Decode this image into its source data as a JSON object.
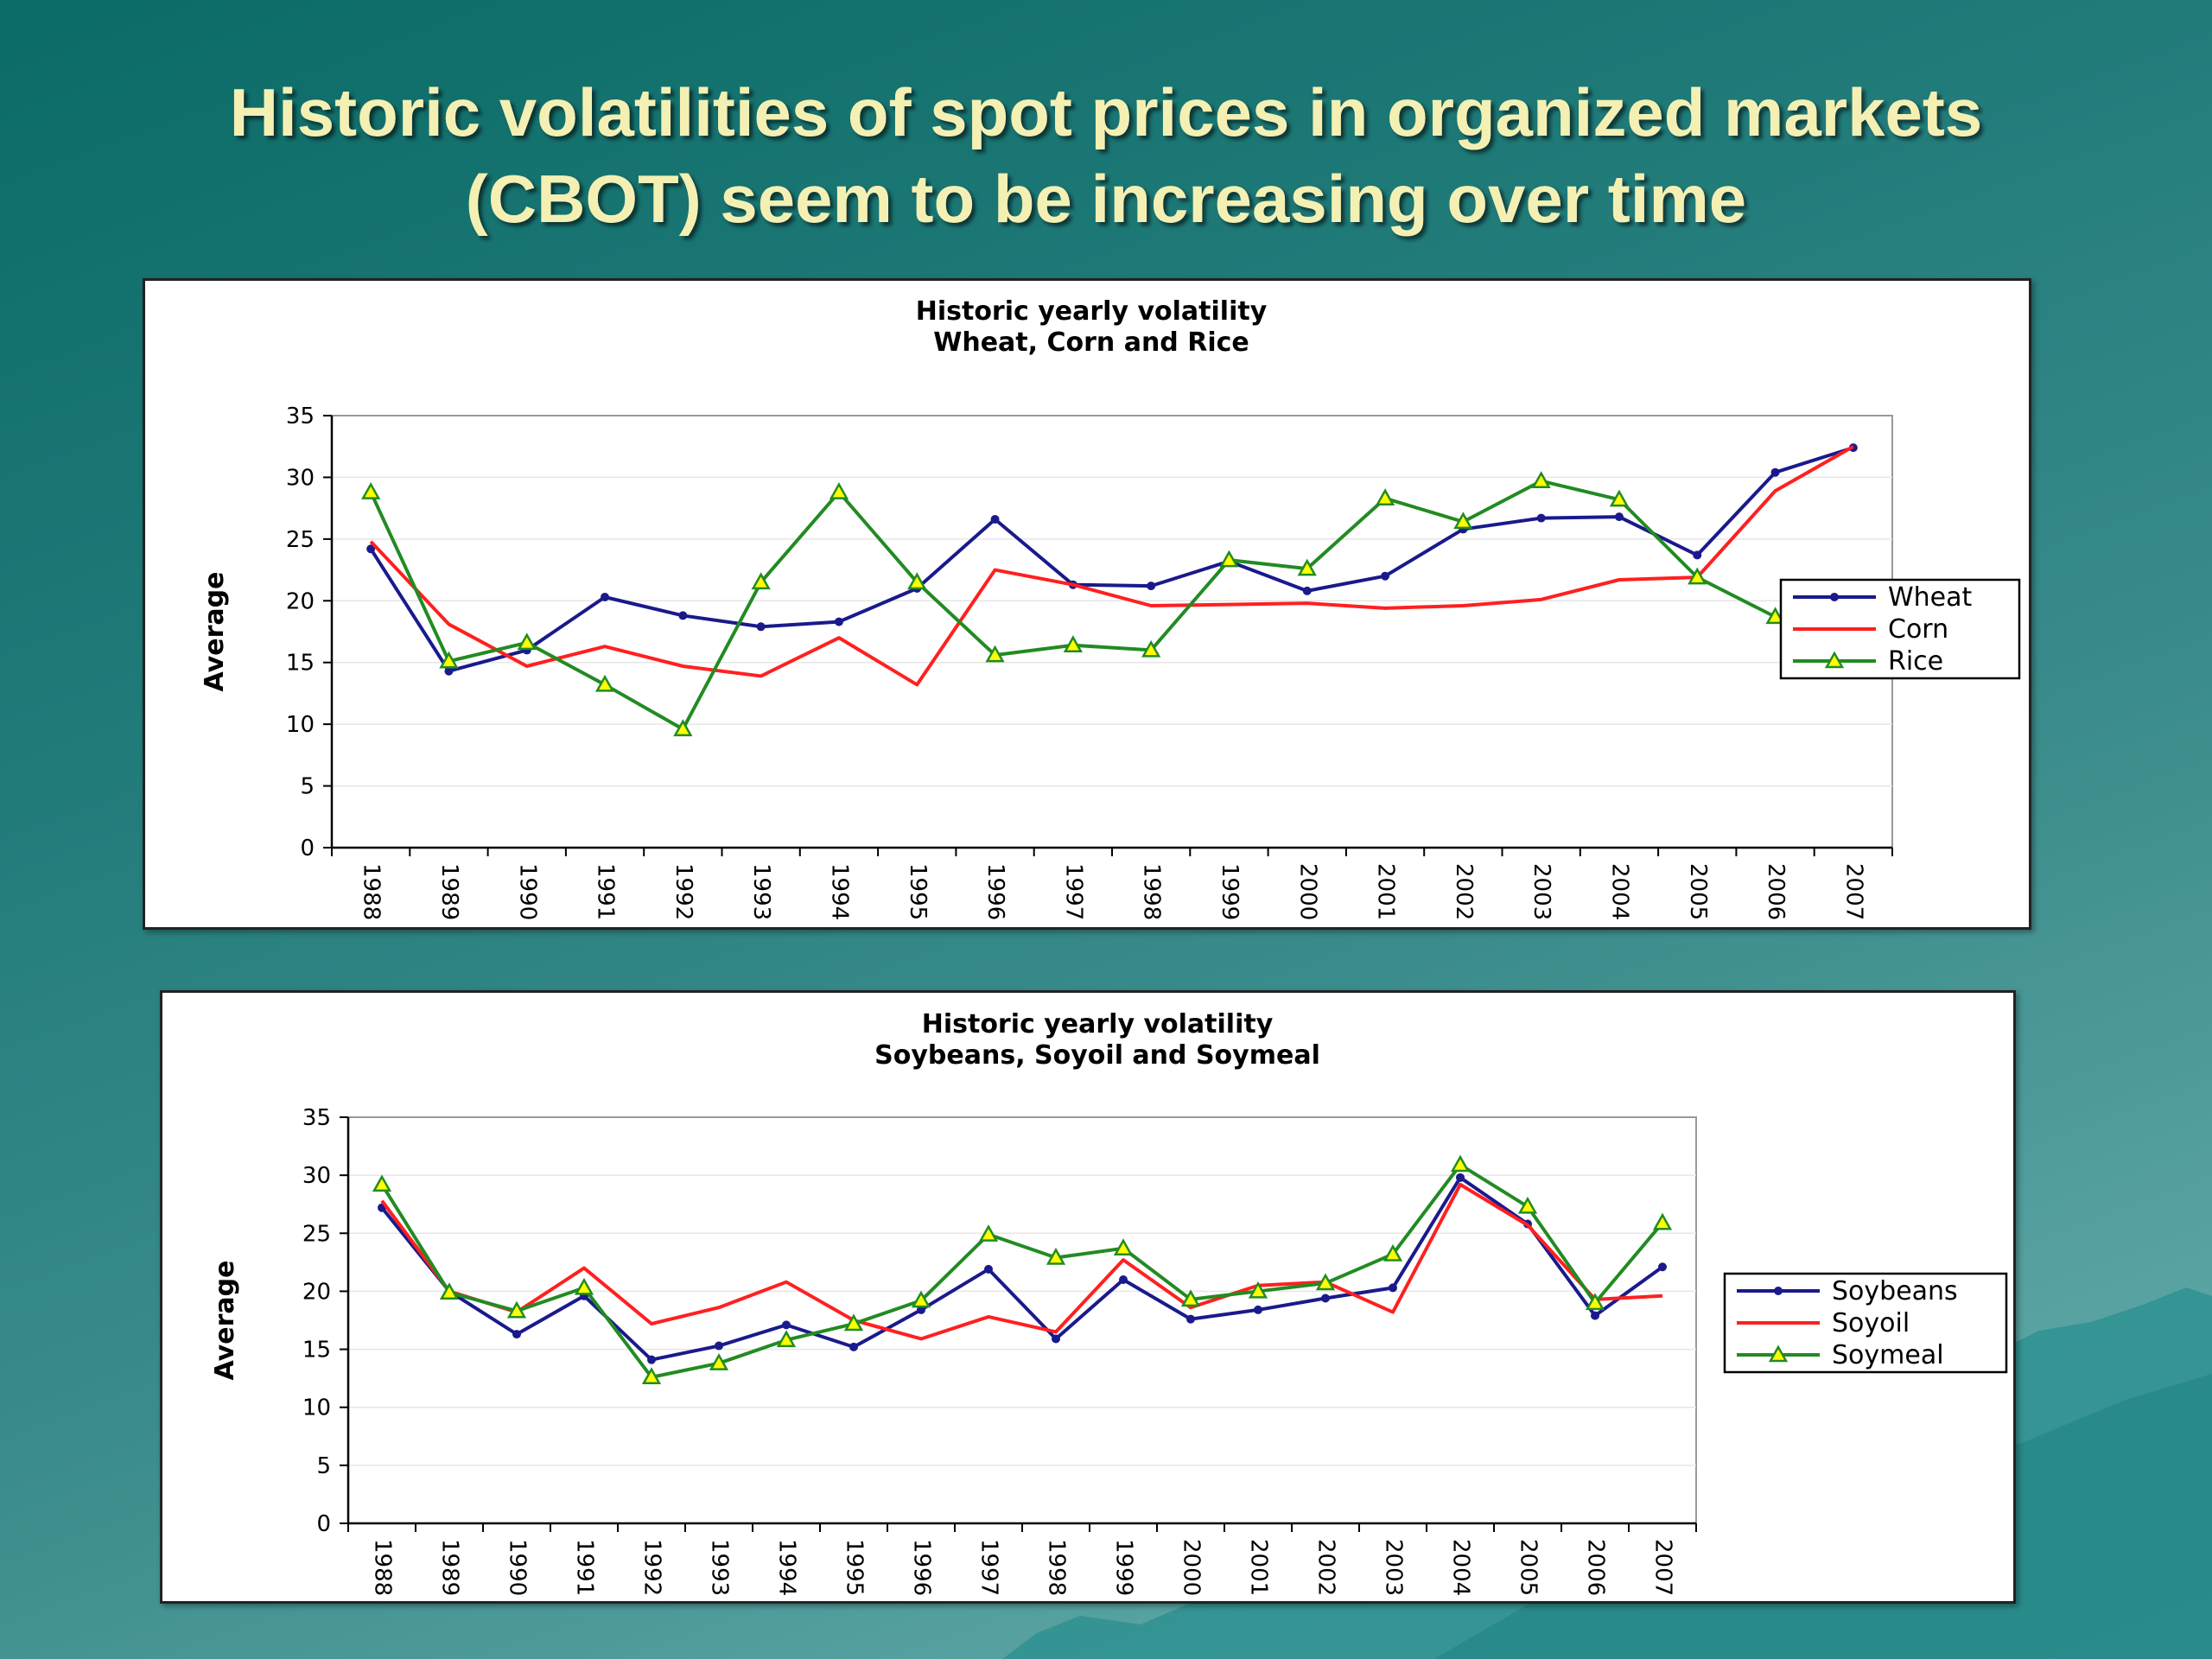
{
  "slide": {
    "title_line1": "Historic volatilities of spot prices in organized markets",
    "title_line2": "(CBOT) seem to be increasing over time"
  },
  "colors": {
    "wheat": "#1a1a8c",
    "corn": "#ff2020",
    "rice": "#228b22",
    "marker_fill": "#ffff00"
  },
  "chart_data": [
    {
      "type": "line",
      "title_line1": "Historic yearly volatility",
      "title_line2": "Wheat, Corn and Rice",
      "xlabel": "",
      "ylabel": "Average",
      "ylim": [
        0,
        35
      ],
      "yticks": [
        0,
        5,
        10,
        15,
        20,
        25,
        30,
        35
      ],
      "grid": true,
      "legend": "right",
      "categories": [
        "1988",
        "1989",
        "1990",
        "1991",
        "1992",
        "1993",
        "1994",
        "1995",
        "1996",
        "1997",
        "1998",
        "1999",
        "2000",
        "2001",
        "2002",
        "2003",
        "2004",
        "2005",
        "2006",
        "2007"
      ],
      "series": [
        {
          "name": "Wheat",
          "color": "#1a1a8c",
          "marker": "dot",
          "values": [
            24.2,
            14.3,
            16.0,
            20.3,
            18.8,
            17.9,
            18.3,
            21.0,
            26.6,
            21.3,
            21.2,
            23.2,
            20.8,
            22.0,
            25.8,
            26.7,
            26.8,
            23.7,
            30.4,
            32.4
          ]
        },
        {
          "name": "Corn",
          "color": "#ff2020",
          "marker": "none",
          "values": [
            24.8,
            18.1,
            14.7,
            16.3,
            14.7,
            13.9,
            17.0,
            13.2,
            22.5,
            21.3,
            19.6,
            19.7,
            19.8,
            19.4,
            19.6,
            20.1,
            21.7,
            21.9,
            28.9,
            32.5
          ]
        },
        {
          "name": "Rice",
          "color": "#228b22",
          "marker": "triangle",
          "values": [
            28.8,
            15.1,
            16.6,
            13.2,
            9.6,
            21.5,
            28.8,
            21.5,
            15.6,
            16.4,
            16.0,
            23.3,
            22.6,
            28.3,
            26.4,
            29.7,
            28.2,
            21.9,
            18.7,
            17.3
          ]
        }
      ]
    },
    {
      "type": "line",
      "title_line1": "Historic yearly volatility",
      "title_line2": "Soybeans, Soyoil and Soymeal",
      "xlabel": "",
      "ylabel": "Average",
      "ylim": [
        0,
        35
      ],
      "yticks": [
        0,
        5,
        10,
        15,
        20,
        25,
        30,
        35
      ],
      "grid": true,
      "legend": "right",
      "categories": [
        "1988",
        "1989",
        "1990",
        "1991",
        "1992",
        "1993",
        "1994",
        "1995",
        "1996",
        "1997",
        "1998",
        "1999",
        "2000",
        "2001",
        "2002",
        "2003",
        "2004",
        "2005",
        "2006",
        "2007"
      ],
      "series": [
        {
          "name": "Soybeans",
          "color": "#1a1a8c",
          "marker": "dot",
          "values": [
            27.2,
            20.0,
            16.3,
            19.6,
            14.1,
            15.3,
            17.1,
            15.2,
            18.4,
            21.9,
            15.9,
            21.0,
            17.6,
            18.4,
            19.4,
            20.3,
            29.8,
            25.8,
            17.9,
            22.1
          ]
        },
        {
          "name": "Soyoil",
          "color": "#ff2020",
          "marker": "none",
          "values": [
            27.8,
            20.0,
            18.2,
            22.0,
            17.2,
            18.6,
            20.8,
            17.5,
            15.9,
            17.8,
            16.5,
            22.7,
            18.6,
            20.5,
            20.8,
            18.2,
            29.2,
            25.7,
            19.3,
            19.6
          ]
        },
        {
          "name": "Soymeal",
          "color": "#228b22",
          "marker": "triangle",
          "values": [
            29.2,
            19.9,
            18.3,
            20.3,
            12.6,
            13.8,
            15.8,
            17.2,
            19.2,
            24.9,
            22.9,
            23.7,
            19.3,
            20.0,
            20.7,
            23.2,
            30.9,
            27.3,
            19.0,
            25.9
          ]
        }
      ]
    }
  ]
}
